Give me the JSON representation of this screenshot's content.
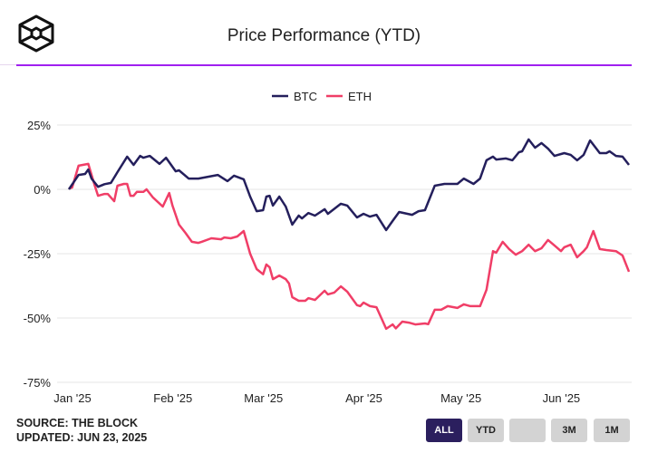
{
  "header": {
    "title": "Price Performance (YTD)",
    "logo": "the-block-cube-logo"
  },
  "colors": {
    "btc": "#241f5c",
    "eth": "#f03e67",
    "accent": "#a020f0",
    "active_button": "#2b1f5e",
    "grid": "#e6e6e6"
  },
  "footer": {
    "source": "SOURCE: THE BLOCK",
    "updated": "UPDATED: JUN 23, 2025"
  },
  "range_buttons": [
    {
      "label": "ALL",
      "active": true
    },
    {
      "label": "YTD"
    },
    {
      "label": ""
    },
    {
      "label": "3M"
    },
    {
      "label": "1M"
    }
  ],
  "chart_data": {
    "type": "line",
    "title": "Price Performance (YTD)",
    "x_unit": "days since Jan 1 2025",
    "xlim": [
      0,
      173
    ],
    "ylim": [
      -75,
      25
    ],
    "yticks": [
      25,
      0,
      -25,
      -50,
      -75
    ],
    "ytick_labels": [
      "25%",
      "0%",
      "-25%",
      "-50%",
      "-75%"
    ],
    "xticks": [
      {
        "day": 0,
        "label": "Jan '25"
      },
      {
        "day": 31,
        "label": "Feb '25"
      },
      {
        "day": 59,
        "label": "Mar '25"
      },
      {
        "day": 90,
        "label": "Apr '25"
      },
      {
        "day": 120,
        "label": "May '25"
      },
      {
        "day": 151,
        "label": "Jun '25"
      }
    ],
    "grid": true,
    "legend_position": "top-center",
    "series": [
      {
        "name": "BTC",
        "points": [
          [
            0,
            0
          ],
          [
            3,
            5.6
          ],
          [
            5,
            6
          ],
          [
            6,
            7.7
          ],
          [
            7,
            4.2
          ],
          [
            9,
            1
          ],
          [
            11,
            2
          ],
          [
            13,
            2.5
          ],
          [
            15,
            6.7
          ],
          [
            18,
            12.7
          ],
          [
            20,
            9.5
          ],
          [
            22,
            13
          ],
          [
            23,
            12.3
          ],
          [
            25,
            13
          ],
          [
            28,
            9.9
          ],
          [
            30,
            12.3
          ],
          [
            33,
            7
          ],
          [
            34,
            7.4
          ],
          [
            37,
            4.2
          ],
          [
            40,
            4.2
          ],
          [
            46,
            5.6
          ],
          [
            49,
            3.2
          ],
          [
            51,
            5.3
          ],
          [
            54,
            3.9
          ],
          [
            56,
            -2.8
          ],
          [
            58,
            -8.5
          ],
          [
            60,
            -8.1
          ],
          [
            61,
            -2.8
          ],
          [
            62,
            -2.5
          ],
          [
            63,
            -6.3
          ],
          [
            65,
            -2.8
          ],
          [
            67,
            -6.7
          ],
          [
            69,
            -13.7
          ],
          [
            71,
            -10.2
          ],
          [
            72,
            -11.3
          ],
          [
            74,
            -9.2
          ],
          [
            76,
            -10.2
          ],
          [
            79,
            -7.7
          ],
          [
            80,
            -9.5
          ],
          [
            84,
            -5.6
          ],
          [
            86,
            -6.3
          ],
          [
            89,
            -10.9
          ],
          [
            91,
            -9.5
          ],
          [
            93,
            -10.6
          ],
          [
            95,
            -9.9
          ],
          [
            98,
            -15.8
          ],
          [
            100,
            -12.3
          ],
          [
            102,
            -8.8
          ],
          [
            106,
            -9.9
          ],
          [
            108,
            -8.5
          ],
          [
            110,
            -8.1
          ],
          [
            113,
            1.4
          ],
          [
            116,
            2.1
          ],
          [
            120,
            2.1
          ],
          [
            122,
            4.2
          ],
          [
            125,
            2.1
          ],
          [
            127,
            4.2
          ],
          [
            129,
            11.3
          ],
          [
            131,
            12.7
          ],
          [
            132,
            11.6
          ],
          [
            135,
            12
          ],
          [
            137,
            11.3
          ],
          [
            139,
            14.4
          ],
          [
            140,
            14.8
          ],
          [
            142,
            19.4
          ],
          [
            144,
            16.2
          ],
          [
            146,
            18
          ],
          [
            148,
            15.8
          ],
          [
            150,
            13
          ],
          [
            153,
            14.1
          ],
          [
            155,
            13.4
          ],
          [
            157,
            11.3
          ],
          [
            159,
            13.4
          ],
          [
            161,
            19
          ],
          [
            164,
            14.1
          ],
          [
            166,
            14.1
          ],
          [
            167,
            14.8
          ],
          [
            169,
            13
          ],
          [
            171,
            12.7
          ],
          [
            173,
            9.5
          ]
        ]
      },
      {
        "name": "ETH",
        "points": [
          [
            0,
            0.3
          ],
          [
            1,
            0.7
          ],
          [
            3,
            9.2
          ],
          [
            6,
            9.9
          ],
          [
            8,
            1.4
          ],
          [
            9,
            -2.5
          ],
          [
            11,
            -1.8
          ],
          [
            12,
            -1.8
          ],
          [
            14,
            -4.6
          ],
          [
            15,
            1.4
          ],
          [
            17,
            2.1
          ],
          [
            18,
            2.1
          ],
          [
            19,
            -2.5
          ],
          [
            20,
            -2.5
          ],
          [
            21,
            -1
          ],
          [
            23,
            -1
          ],
          [
            24,
            0
          ],
          [
            26,
            -3.2
          ],
          [
            29,
            -6.7
          ],
          [
            31,
            -1.4
          ],
          [
            32,
            -6.3
          ],
          [
            34,
            -13.7
          ],
          [
            36,
            -16.9
          ],
          [
            38,
            -20.4
          ],
          [
            40,
            -20.8
          ],
          [
            41,
            -20.4
          ],
          [
            44,
            -19
          ],
          [
            47,
            -19.4
          ],
          [
            48,
            -18.7
          ],
          [
            50,
            -19
          ],
          [
            52,
            -18.3
          ],
          [
            54,
            -16.2
          ],
          [
            56,
            -25
          ],
          [
            58,
            -31
          ],
          [
            60,
            -33
          ],
          [
            61,
            -29.2
          ],
          [
            62,
            -30.3
          ],
          [
            63,
            -34.9
          ],
          [
            65,
            -33.5
          ],
          [
            67,
            -34.9
          ],
          [
            68,
            -36.6
          ],
          [
            69,
            -41.9
          ],
          [
            71,
            -43.3
          ],
          [
            73,
            -43.3
          ],
          [
            74,
            -42.3
          ],
          [
            76,
            -43
          ],
          [
            79,
            -39.4
          ],
          [
            80,
            -40.8
          ],
          [
            82,
            -40.1
          ],
          [
            84,
            -37.7
          ],
          [
            86,
            -39.8
          ],
          [
            89,
            -45
          ],
          [
            90,
            -45.4
          ],
          [
            91,
            -44
          ],
          [
            93,
            -45.4
          ],
          [
            95,
            -45.8
          ],
          [
            98,
            -54.2
          ],
          [
            100,
            -52.5
          ],
          [
            101,
            -54
          ],
          [
            103,
            -51.4
          ],
          [
            105,
            -51.8
          ],
          [
            107,
            -52.5
          ],
          [
            110,
            -52.1
          ],
          [
            111,
            -52.4
          ],
          [
            113,
            -46.8
          ],
          [
            115,
            -46.8
          ],
          [
            117,
            -45.4
          ],
          [
            120,
            -46.1
          ],
          [
            122,
            -44.7
          ],
          [
            124,
            -45.4
          ],
          [
            127,
            -45.4
          ],
          [
            129,
            -39
          ],
          [
            131,
            -24
          ],
          [
            132,
            -24.6
          ],
          [
            134,
            -20.4
          ],
          [
            136,
            -23.2
          ],
          [
            138,
            -25.4
          ],
          [
            140,
            -24
          ],
          [
            142,
            -21.5
          ],
          [
            144,
            -24
          ],
          [
            146,
            -22.9
          ],
          [
            148,
            -19.7
          ],
          [
            150,
            -21.8
          ],
          [
            152,
            -24
          ],
          [
            153,
            -22.5
          ],
          [
            155,
            -21.5
          ],
          [
            157,
            -26.4
          ],
          [
            159,
            -24
          ],
          [
            160,
            -22.5
          ],
          [
            162,
            -16.2
          ],
          [
            164,
            -23.2
          ],
          [
            166,
            -23.6
          ],
          [
            169,
            -24
          ],
          [
            171,
            -25.7
          ],
          [
            173,
            -32
          ]
        ]
      }
    ]
  }
}
